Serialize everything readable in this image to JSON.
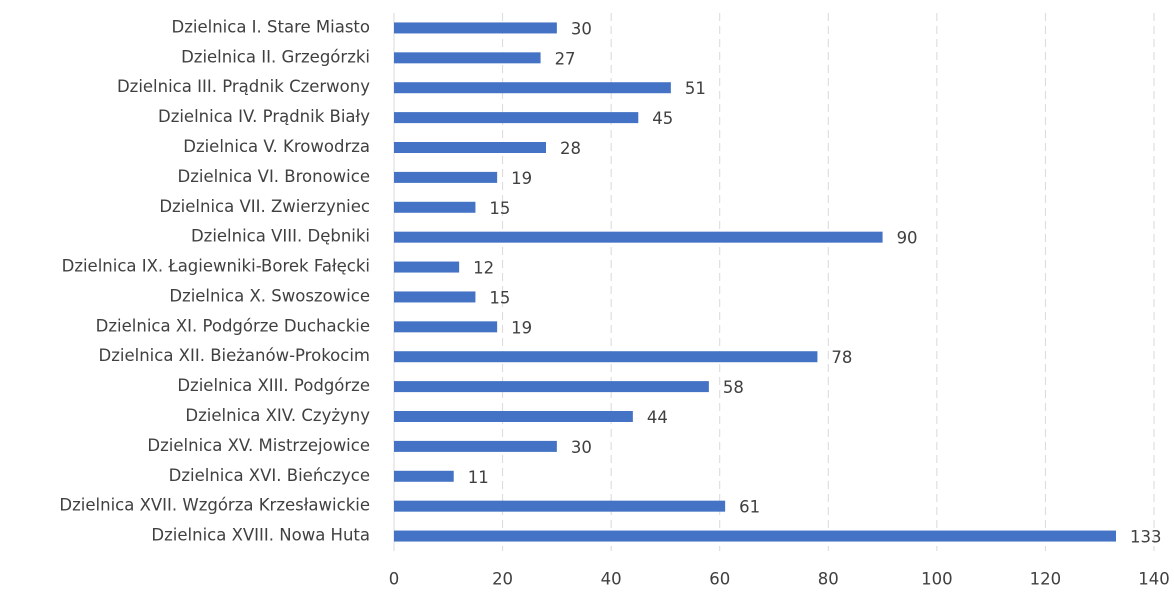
{
  "chart_data": {
    "type": "bar",
    "orientation": "horizontal",
    "categories": [
      "Dzielnica I. Stare Miasto",
      "Dzielnica II. Grzegórzki",
      "Dzielnica III. Prądnik Czerwony",
      "Dzielnica IV. Prądnik Biały",
      "Dzielnica V. Krowodrza",
      "Dzielnica VI. Bronowice",
      "Dzielnica VII. Zwierzyniec",
      "Dzielnica VIII. Dębniki",
      "Dzielnica IX. Łagiewniki-Borek Fałęcki",
      "Dzielnica X. Swoszowice",
      "Dzielnica XI. Podgórze Duchackie",
      "Dzielnica XII. Bieżanów-Prokocim",
      "Dzielnica XIII. Podgórze",
      "Dzielnica XIV. Czyżyny",
      "Dzielnica XV. Mistrzejowice",
      "Dzielnica XVI. Bieńczyce",
      "Dzielnica XVII. Wzgórza Krzesławickie",
      "Dzielnica XVIII. Nowa Huta"
    ],
    "values": [
      30,
      27,
      51,
      45,
      28,
      19,
      15,
      90,
      12,
      15,
      19,
      78,
      58,
      44,
      30,
      11,
      61,
      133
    ],
    "color": "#4472c4",
    "xlim": [
      0,
      140
    ],
    "xticks": [
      0,
      20,
      40,
      60,
      80,
      100,
      120,
      140
    ],
    "grid": true
  }
}
